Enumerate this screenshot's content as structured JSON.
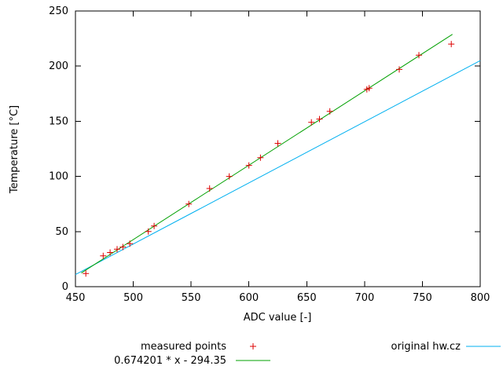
{
  "chart_data": {
    "type": "scatter",
    "title": "",
    "xlabel": "ADC value [-]",
    "ylabel": "Temperature [°C]",
    "xlim": [
      450,
      800
    ],
    "ylim": [
      0,
      250
    ],
    "xticks": [
      450,
      500,
      550,
      600,
      650,
      700,
      750,
      800
    ],
    "yticks": [
      0,
      50,
      100,
      150,
      200,
      250
    ],
    "grid": false,
    "legend_position": "below-plot",
    "series": [
      {
        "name": "measured points",
        "type": "points",
        "marker": "plus",
        "color": "#dd0000",
        "points": [
          [
            459,
            12
          ],
          [
            474,
            28
          ],
          [
            480,
            31
          ],
          [
            486,
            34
          ],
          [
            491,
            36
          ],
          [
            497,
            39
          ],
          [
            513,
            50
          ],
          [
            518,
            55
          ],
          [
            548,
            75
          ],
          [
            566,
            89
          ],
          [
            583,
            100
          ],
          [
            600,
            110
          ],
          [
            610,
            117
          ],
          [
            625,
            130
          ],
          [
            654,
            149
          ],
          [
            661,
            152
          ],
          [
            670,
            159
          ],
          [
            702,
            179
          ],
          [
            704,
            180
          ],
          [
            730,
            197
          ],
          [
            747,
            210
          ],
          [
            775,
            220
          ]
        ]
      },
      {
        "name": "0.674201 * x - 294.35",
        "type": "line",
        "color": "#00a000",
        "slope": 0.674201,
        "intercept": -294.35,
        "x_start": 455,
        "x_end": 776
      },
      {
        "name": "original hw.cz",
        "type": "line",
        "color": "#00b0f0",
        "points": [
          [
            450,
            11
          ],
          [
            800,
            205
          ]
        ]
      }
    ]
  }
}
